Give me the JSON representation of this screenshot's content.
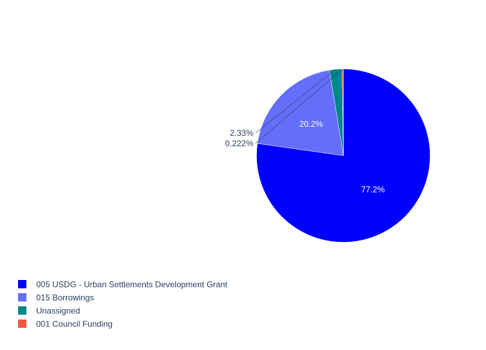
{
  "chart_data": {
    "type": "pie",
    "title": "",
    "slices": [
      {
        "label": "005 USDG - Urban Settlements Development Grant",
        "value": 77.2,
        "text": "77.2%",
        "color": "#0000ff",
        "text_color": "#ffffff",
        "text_position": "inside"
      },
      {
        "label": "015 Borrowings",
        "value": 20.2,
        "text": "20.2%",
        "color": "#636efa",
        "text_color": "#ffffff",
        "text_position": "inside"
      },
      {
        "label": "Unassigned",
        "value": 2.33,
        "text": "2.33%",
        "color": "#00868b",
        "text_color": "#2a3f5f",
        "text_position": "outside"
      },
      {
        "label": "001 Council Funding",
        "value": 0.222,
        "text": "0.222%",
        "color": "#ef553b",
        "text_color": "#2a3f5f",
        "text_position": "outside"
      }
    ],
    "direction": "clockwise",
    "start_angle": "top",
    "legend_position": "bottom-left"
  }
}
